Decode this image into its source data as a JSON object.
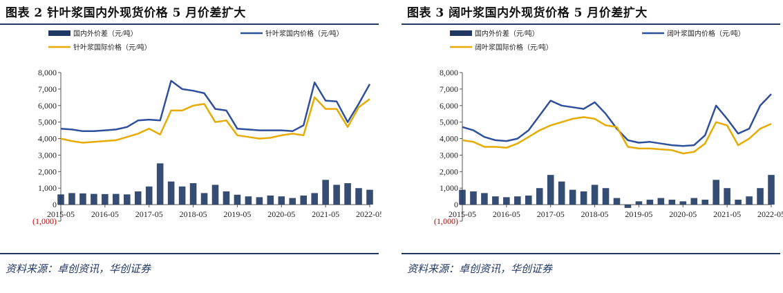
{
  "charts": [
    {
      "title": "图表 2 针叶浆国内外现货价格 5 月价差扩大",
      "source": "资料来源：卓创资讯，华创证券",
      "chart_data": {
        "type": "bar+line",
        "ylim": [
          -1000,
          8000
        ],
        "yticks": [
          -1000,
          0,
          1000,
          2000,
          3000,
          4000,
          5000,
          6000,
          7000,
          8000
        ],
        "ytick_labels": [
          "(1,000)",
          "0",
          "1,000",
          "2,000",
          "3,000",
          "4,000",
          "5,000",
          "6,000",
          "7,000",
          "8,000"
        ],
        "x_range": [
          "2015-05",
          "2022-05"
        ],
        "xtick_labels": [
          "2015-05",
          "2016-05",
          "2017-05",
          "2018-05",
          "2019-05",
          "2020-05",
          "2021-05",
          "2022-05"
        ],
        "legend": [
          "国内外价差（元/吨）",
          "针叶浆国内价格（元/吨）",
          "针叶浆国际价格（元/吨）"
        ],
        "x": [
          "2015-05",
          "2015-08",
          "2015-11",
          "2016-02",
          "2016-05",
          "2016-08",
          "2016-11",
          "2017-02",
          "2017-05",
          "2017-08",
          "2017-11",
          "2018-02",
          "2018-05",
          "2018-08",
          "2018-11",
          "2019-02",
          "2019-05",
          "2019-08",
          "2019-11",
          "2020-02",
          "2020-05",
          "2020-08",
          "2020-11",
          "2021-02",
          "2021-05",
          "2021-08",
          "2021-11",
          "2022-02",
          "2022-05"
        ],
        "series": [
          {
            "name": "国内外价差（元/吨）",
            "kind": "bar",
            "color": "#1f3864",
            "values": [
              620,
              700,
              680,
              650,
              640,
              650,
              620,
              800,
              1100,
              2500,
              1400,
              1100,
              1300,
              700,
              1200,
              800,
              600,
              500,
              450,
              550,
              500,
              400,
              550,
              700,
              1500,
              1200,
              1300,
              1000,
              900
            ]
          },
          {
            "name": "针叶浆国内价格（元/吨）",
            "kind": "line",
            "color": "#2e4f9c",
            "values": [
              4600,
              4550,
              4450,
              4450,
              4500,
              4550,
              4700,
              5100,
              5150,
              5100,
              7500,
              7000,
              6900,
              6750,
              5800,
              5700,
              4600,
              4550,
              4500,
              4500,
              4500,
              4450,
              4800,
              7400,
              6300,
              6250,
              5000,
              6100,
              7300
            ]
          },
          {
            "name": "针叶浆国际价格（元/吨）",
            "kind": "line",
            "color": "#e6aa00",
            "values": [
              4000,
              3850,
              3750,
              3800,
              3850,
              3900,
              4100,
              4300,
              4600,
              4250,
              5700,
              5700,
              6000,
              6100,
              5000,
              5100,
              4200,
              4100,
              4000,
              4050,
              4200,
              4300,
              4200,
              6500,
              5800,
              5800,
              4700,
              5900,
              6400
            ]
          }
        ]
      }
    },
    {
      "title": "图表 3 阔叶浆国内外现货价格 5 月价差扩大",
      "source": "资料来源：卓创资讯，华创证券",
      "chart_data": {
        "type": "bar+line",
        "ylim": [
          -1000,
          8000
        ],
        "yticks": [
          -1000,
          0,
          1000,
          2000,
          3000,
          4000,
          5000,
          6000,
          7000,
          8000
        ],
        "ytick_labels": [
          "(1,000)",
          "0",
          "1,000",
          "2,000",
          "3,000",
          "4,000",
          "5,000",
          "6,000",
          "7,000",
          "8,000"
        ],
        "x_range": [
          "2015-05",
          "2022-05"
        ],
        "xtick_labels": [
          "2015-05",
          "2016-05",
          "2017-05",
          "2018-05",
          "2019-05",
          "2020-05",
          "2021-05",
          "2022-05"
        ],
        "legend": [
          "国内外价差（元/吨）",
          "阔叶浆国内价格（元/吨）",
          "阔叶浆国际价格（元/吨）"
        ],
        "x": [
          "2015-05",
          "2015-08",
          "2015-11",
          "2016-02",
          "2016-05",
          "2016-08",
          "2016-11",
          "2017-02",
          "2017-05",
          "2017-08",
          "2017-11",
          "2018-02",
          "2018-05",
          "2018-08",
          "2018-11",
          "2019-02",
          "2019-05",
          "2019-08",
          "2019-11",
          "2020-02",
          "2020-05",
          "2020-08",
          "2020-11",
          "2021-02",
          "2021-05",
          "2021-08",
          "2021-11",
          "2022-02",
          "2022-05"
        ],
        "series": [
          {
            "name": "国内外价差（元/吨）",
            "kind": "bar",
            "color": "#1f3864",
            "values": [
              900,
              800,
              700,
              500,
              450,
              500,
              550,
              1000,
              1800,
              1400,
              900,
              800,
              1200,
              1000,
              400,
              -200,
              200,
              300,
              400,
              300,
              200,
              400,
              300,
              1500,
              1000,
              300,
              500,
              1000,
              1800
            ]
          },
          {
            "name": "阔叶浆国内价格（元/吨）",
            "kind": "line",
            "color": "#2e4f9c",
            "values": [
              4700,
              4500,
              4100,
              3900,
              3850,
              4000,
              4500,
              5400,
              6300,
              6000,
              5900,
              5800,
              6200,
              5500,
              4600,
              3900,
              3750,
              3800,
              3700,
              3600,
              3550,
              3600,
              4200,
              6000,
              5200,
              4300,
              4600,
              6000,
              6700
            ]
          },
          {
            "name": "阔叶浆国际价格（元/吨）",
            "kind": "line",
            "color": "#e6aa00",
            "values": [
              3900,
              3800,
              3500,
              3500,
              3450,
              3700,
              4100,
              4500,
              4800,
              5000,
              5200,
              5300,
              5200,
              4800,
              4700,
              3500,
              3400,
              3400,
              3350,
              3300,
              3100,
              3200,
              3700,
              5000,
              4800,
              3600,
              4000,
              4600,
              4900
            ]
          }
        ]
      }
    }
  ]
}
